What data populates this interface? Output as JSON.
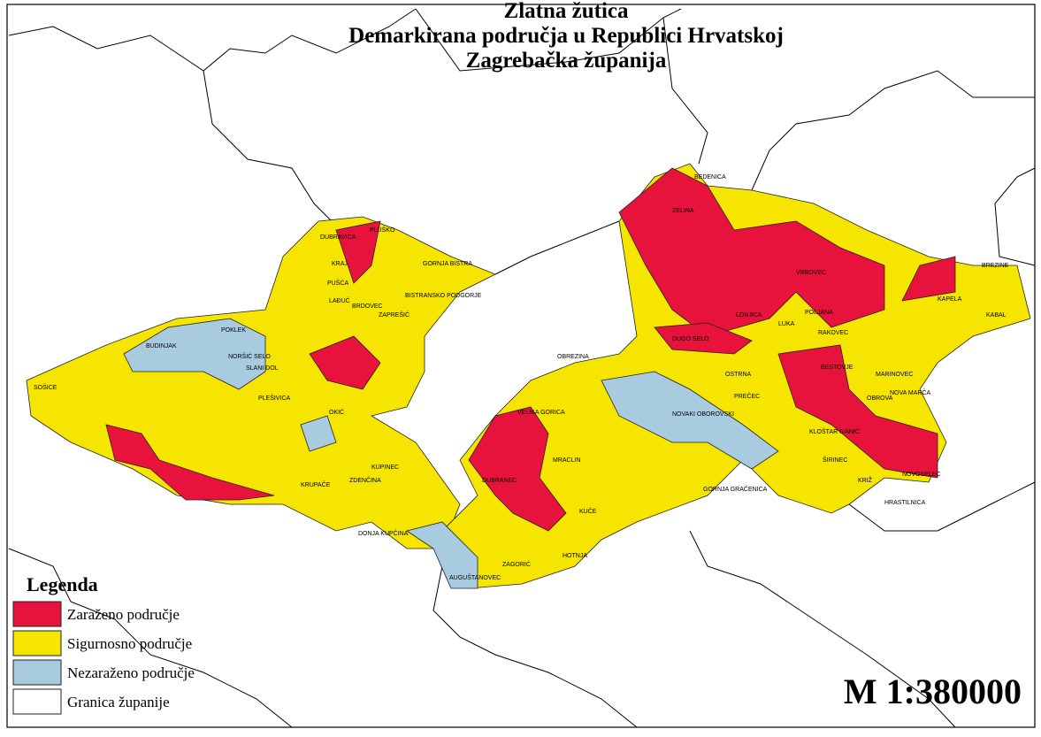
{
  "title": {
    "lines": [
      "Zlatna žutica",
      "Demarkirana područja u Republici Hrvatskoj",
      "Zagrebačka županija"
    ]
  },
  "legend": {
    "title": "Legenda",
    "items": [
      {
        "label": "Zaraženo područje",
        "color": "#e8133c"
      },
      {
        "label": "Sigurnosno područje",
        "color": "#f5e500"
      },
      {
        "label": "Nezaraženo područje",
        "color": "#a9cbe0"
      },
      {
        "label": "Granica županije",
        "color": "#ffffff"
      }
    ]
  },
  "scale": "M 1:380000",
  "places": [
    "BEDENICA",
    "PLUŠKO",
    "DUBRAVICA",
    "KRAJ",
    "PUŠĆA",
    "LAĐUĆ",
    "BRDOVEC",
    "ZAPREŠIĆ",
    "GORNJA BISTRA",
    "BISTRANSKO PODGORJE",
    "POKLEK",
    "BUDINJAK",
    "SOŠICE",
    "NORŠIĆ SELO",
    "SLANI DOL",
    "PLEŠIVICA",
    "OKIĆ",
    "KUPINEC",
    "ZDENČINA",
    "KRUPAČE",
    "DONJA KUPČINA",
    "AUGUŠTANOVEC",
    "HOTNJA",
    "ZAGORIĆ",
    "KUČE",
    "MRACLIN",
    "OBREZINA",
    "NOVAKI OBOROVSKI",
    "PREČEC",
    "OSTRNA",
    "DUGO SELO",
    "BESTOVJE",
    "OBROVA",
    "NOVA MARČA",
    "KLOŠTAR IVANIĆ",
    "NOVOSELEC",
    "ŠIRINEC",
    "KRIŽ",
    "HRASTILNICA",
    "BREZINE",
    "KABAL",
    "KAPELA",
    "MARINOVEC",
    "VRBOVEC",
    "LONJICA",
    "LUKA",
    "POLJANA",
    "RAKOVEC",
    "GORNJA GRAČENICA",
    "ZELINA",
    "VELIKA GORICA",
    "DUBRANEC"
  ]
}
